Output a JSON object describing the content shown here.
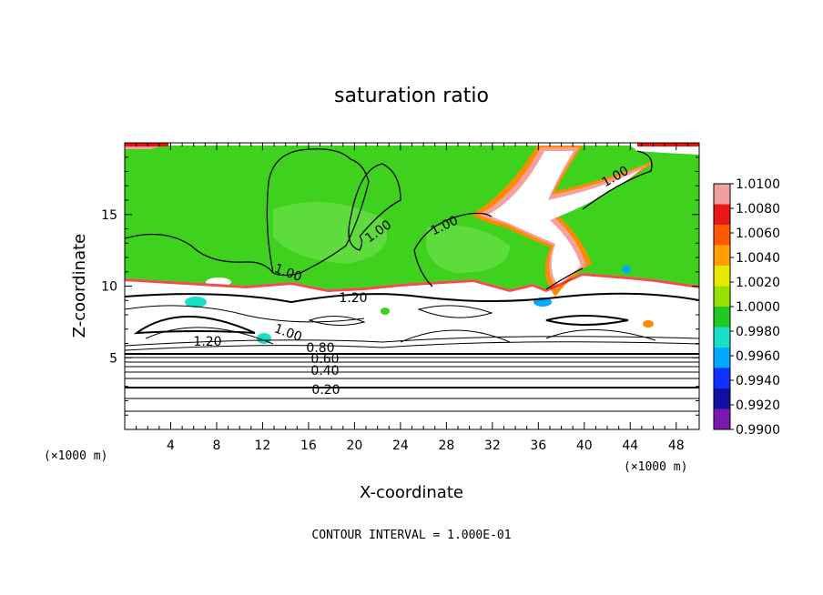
{
  "chart_data": {
    "type": "heatmap",
    "title": "saturation ratio",
    "xlabel": "X-coordinate",
    "ylabel": "Z-coordinate",
    "x_unit": "(×1000 m)",
    "y_unit": "(×1000 m)",
    "xlim": [
      0,
      50
    ],
    "ylim": [
      0,
      20
    ],
    "x_ticks": [
      "4",
      "8",
      "12",
      "16",
      "20",
      "24",
      "28",
      "32",
      "36",
      "40",
      "44",
      "48"
    ],
    "y_ticks": [
      "5",
      "10",
      "15"
    ],
    "colorbar": {
      "levels": [
        "1.0100",
        "1.0080",
        "1.0060",
        "1.0040",
        "1.0020",
        "1.0000",
        "0.9980",
        "0.9960",
        "0.9940",
        "0.9920",
        "0.9900"
      ],
      "colors": [
        "#f0a0a0",
        "#e81818",
        "#ff5a00",
        "#ffa000",
        "#e8e800",
        "#98e000",
        "#22c822",
        "#18e0c8",
        "#00a8ff",
        "#1030ff",
        "#1010a0",
        "#7a18b0"
      ]
    },
    "contour_labels": [
      "1.00",
      "1.00",
      "1.00",
      "1.00",
      "1.20",
      "1.00",
      "1.20",
      "0.80",
      "0.60",
      "0.40",
      "0.20"
    ],
    "footer": "CONTOUR INTERVAL = 1.000E-01"
  },
  "colors": {
    "green": "#3ed11e",
    "white": "#ffffff",
    "red": "#f20f0f",
    "orange": "#ff8a00",
    "pink": "#f7a0a0",
    "cyan": "#18e0c8"
  }
}
